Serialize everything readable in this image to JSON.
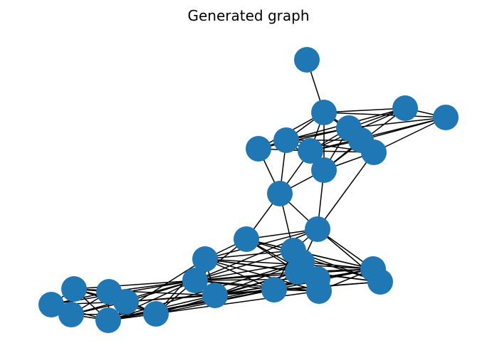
{
  "figure": {
    "title": "Generated graph"
  },
  "graph": {
    "node_color": "#1f77b4",
    "edge_color": "#000000",
    "node_count": 34
  }
}
